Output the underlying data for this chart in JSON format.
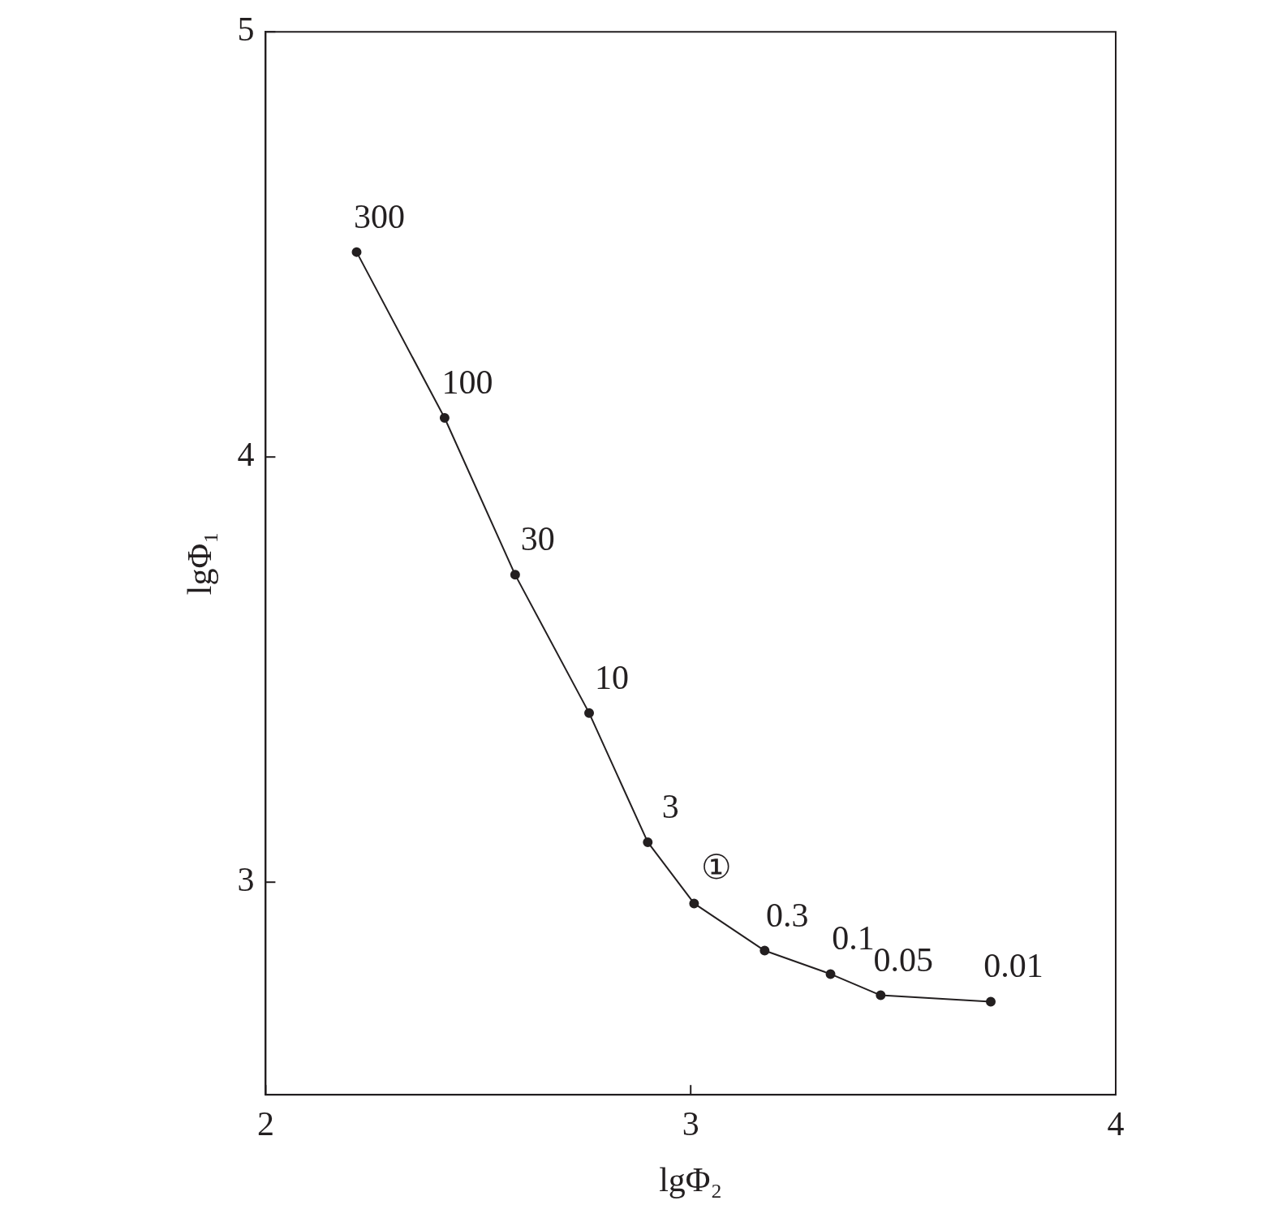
{
  "chart_data": {
    "type": "line",
    "xlabel": "lgΦ₂",
    "ylabel": "lgΦ₁",
    "x": [
      2.214,
      2.421,
      2.587,
      2.761,
      2.899,
      3.008,
      3.174,
      3.329,
      3.447,
      3.706
    ],
    "series": [
      {
        "color": "#231f20",
        "values": [
          4.482,
          4.092,
          3.723,
          3.398,
          3.094,
          2.95,
          2.839,
          2.784,
          2.734,
          2.719
        ]
      }
    ],
    "xlim": [
      2,
      4
    ],
    "xticks": [
      2,
      3,
      4
    ],
    "ylim": [
      2.5,
      5
    ],
    "yticks": [
      3,
      4,
      5
    ],
    "grid": false,
    "legend": false,
    "marker": "circle",
    "line_style": "solid",
    "annotations": [
      {
        "text": "300",
        "x": 2.214,
        "y": 4.482
      },
      {
        "text": "100",
        "x": 2.421,
        "y": 4.092
      },
      {
        "text": "30",
        "x": 2.587,
        "y": 3.723
      },
      {
        "text": "10",
        "x": 2.761,
        "y": 3.398
      },
      {
        "text": "3",
        "x": 2.899,
        "y": 3.094
      },
      {
        "text": "①",
        "x": 3.008,
        "y": 2.95
      },
      {
        "text": "0.3",
        "x": 3.174,
        "y": 2.839
      },
      {
        "text": "0.1",
        "x": 3.329,
        "y": 2.784
      },
      {
        "text": "0.05",
        "x": 3.447,
        "y": 2.734
      },
      {
        "text": "0.01",
        "x": 3.706,
        "y": 2.719
      }
    ]
  }
}
